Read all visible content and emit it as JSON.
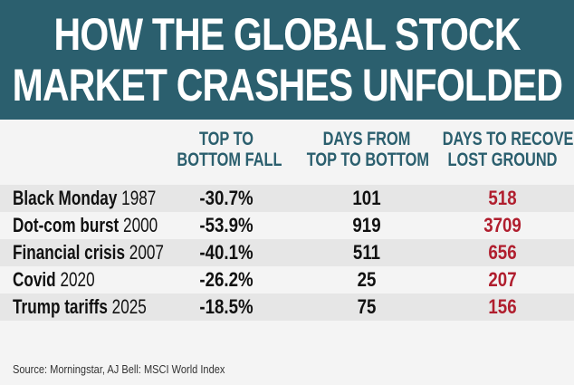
{
  "title": {
    "line1": "HOW THE GLOBAL STOCK",
    "line2": "MARKET CRASHES UNFOLDED"
  },
  "colors": {
    "banner": "#2b5f6e",
    "header_text": "#2b5f6e",
    "recover_text": "#b01e2e",
    "shaded_row": "#e6e6e6",
    "table_bg": "#f4f4f4"
  },
  "chart_data": {
    "type": "table",
    "columns": [
      {
        "line1": "TOP TO",
        "line2": "BOTTOM FALL"
      },
      {
        "line1": "DAYS FROM",
        "line2": "TOP TO BOTTOM"
      },
      {
        "line1": "DAYS TO RECOVER",
        "line2": "LOST GROUND"
      }
    ],
    "rows": [
      {
        "name": "Black Monday",
        "year": "1987",
        "fall": "-30.7%",
        "days": "101",
        "recover": "518"
      },
      {
        "name": "Dot-com burst",
        "year": "2000",
        "fall": "-53.9%",
        "days": "919",
        "recover": "3709"
      },
      {
        "name": "Financial crisis",
        "year": "2007",
        "fall": "-40.1%",
        "days": "511",
        "recover": "656"
      },
      {
        "name": "Covid",
        "year": "2020",
        "fall": "-26.2%",
        "days": "25",
        "recover": "207"
      },
      {
        "name": "Trump tariffs",
        "year": "2025",
        "fall": "-18.5%",
        "days": "75",
        "recover": "156"
      }
    ]
  },
  "source": "Source: Morningstar, AJ Bell: MSCI World Index"
}
